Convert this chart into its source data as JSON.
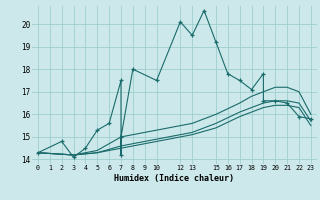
{
  "xlabel": "Humidex (Indice chaleur)",
  "bg_color": "#cce8ea",
  "grid_color": "#9ecece",
  "line_color": "#1a6b6b",
  "xlim": [
    -0.5,
    23.5
  ],
  "ylim": [
    13.8,
    20.8
  ],
  "xticks": [
    0,
    1,
    2,
    3,
    4,
    5,
    6,
    7,
    8,
    9,
    10,
    12,
    13,
    15,
    16,
    17,
    18,
    19,
    20,
    21,
    22,
    23
  ],
  "yticks": [
    14,
    15,
    16,
    17,
    18,
    19,
    20
  ],
  "lines": [
    {
      "x": [
        0,
        2,
        3,
        4,
        5,
        6,
        7,
        7,
        7,
        8,
        10,
        12,
        13,
        14,
        15,
        16,
        17,
        18,
        19,
        19,
        20,
        21,
        22,
        23
      ],
      "y": [
        14.3,
        14.8,
        14.1,
        14.5,
        15.3,
        15.6,
        17.5,
        14.2,
        15.0,
        18.0,
        17.5,
        20.1,
        19.5,
        20.6,
        19.2,
        17.8,
        17.5,
        17.1,
        17.8,
        16.6,
        16.6,
        16.5,
        15.9,
        15.8
      ],
      "marker": "+"
    },
    {
      "x": [
        0,
        3,
        5,
        7,
        8,
        10,
        12,
        13,
        15,
        17,
        18,
        19,
        20,
        21,
        22,
        23
      ],
      "y": [
        14.3,
        14.2,
        14.4,
        15.0,
        15.1,
        15.3,
        15.5,
        15.6,
        16.0,
        16.5,
        16.8,
        17.0,
        17.2,
        17.2,
        17.0,
        16.0
      ],
      "marker": null
    },
    {
      "x": [
        0,
        3,
        5,
        7,
        8,
        10,
        12,
        13,
        15,
        17,
        18,
        19,
        20,
        21,
        22,
        23
      ],
      "y": [
        14.3,
        14.2,
        14.3,
        14.6,
        14.7,
        14.9,
        15.1,
        15.2,
        15.6,
        16.1,
        16.3,
        16.5,
        16.6,
        16.6,
        16.5,
        15.7
      ],
      "marker": null
    },
    {
      "x": [
        0,
        3,
        5,
        7,
        8,
        10,
        12,
        13,
        15,
        17,
        18,
        19,
        20,
        21,
        22,
        23
      ],
      "y": [
        14.3,
        14.2,
        14.3,
        14.5,
        14.6,
        14.8,
        15.0,
        15.1,
        15.4,
        15.9,
        16.1,
        16.3,
        16.4,
        16.4,
        16.3,
        15.5
      ],
      "marker": null
    }
  ]
}
